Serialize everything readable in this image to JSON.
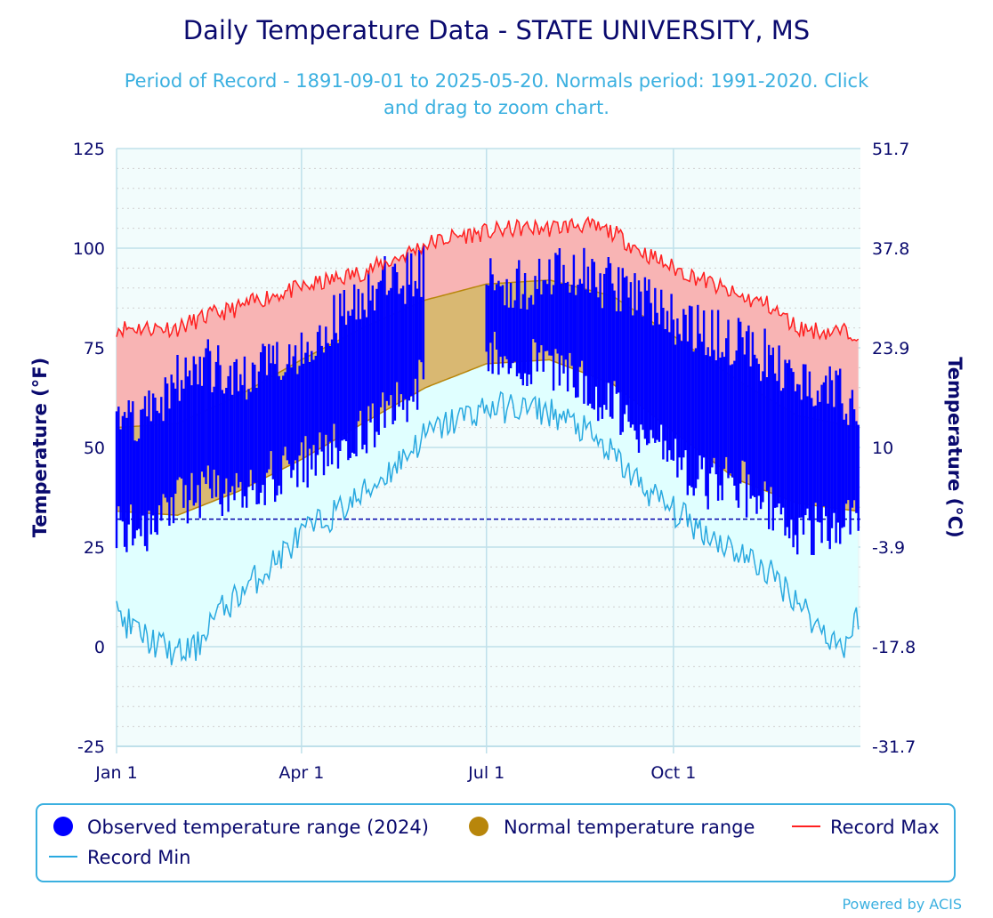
{
  "chart_data": {
    "type": "area",
    "title": "Daily Temperature Data - STATE UNIVERSITY, MS",
    "subtitle_line1": "Period of Record - 1891-09-01 to 2025-05-20. Normals period: 1991-2020. Click",
    "subtitle_line2": "and drag to zoom chart.",
    "ylabel": "Temperature (°F)",
    "ylabel_right": "Temperature (°C)",
    "ylim": [
      -25,
      125
    ],
    "xlim": [
      0,
      366
    ],
    "y_ticks": [
      -25,
      0,
      25,
      50,
      75,
      100,
      125
    ],
    "y_ticks_right": [
      "-31.7",
      "-17.8",
      "-3.9",
      "10",
      "23.9",
      "37.8",
      "51.7"
    ],
    "x_ticks": [
      {
        "day": 0,
        "label": "Jan 1"
      },
      {
        "day": 91,
        "label": "Apr 1"
      },
      {
        "day": 182,
        "label": "Jul 1"
      },
      {
        "day": 274,
        "label": "Oct 1"
      }
    ],
    "freezing_line_f": 32,
    "observed_last_day": 151,
    "grid": true,
    "legend_position": "bottom",
    "series": [
      {
        "name": "Observed temperature range (2024)",
        "kind": "range-bars",
        "color": "#0000ff",
        "gap_days": [
          152,
          181
        ],
        "anchors_day": [
          0,
          15,
          30,
          45,
          60,
          75,
          91,
          106,
          121,
          136,
          151,
          182,
          197,
          212,
          227,
          243,
          258,
          274,
          289,
          304,
          319,
          335,
          350,
          365
        ],
        "high_anchors": [
          54,
          56,
          64,
          68,
          62,
          70,
          72,
          78,
          86,
          89,
          92,
          90,
          88,
          90,
          91,
          88,
          85,
          80,
          76,
          74,
          70,
          64,
          62,
          58
        ],
        "low_anchors": [
          32,
          31,
          38,
          40,
          38,
          44,
          47,
          51,
          55,
          62,
          68,
          74,
          72,
          72,
          68,
          62,
          56,
          48,
          42,
          44,
          36,
          30,
          32,
          36
        ]
      },
      {
        "name": "Normal temperature range",
        "kind": "band",
        "color": "#b8860b",
        "anchors_day": [
          0,
          30,
          60,
          91,
          121,
          152,
          182,
          213,
          244,
          274,
          305,
          335,
          365
        ],
        "normal_high": [
          55,
          56,
          63,
          72,
          80,
          87,
          91,
          92,
          88,
          78,
          67,
          58,
          55
        ],
        "normal_low": [
          34,
          33,
          39,
          47,
          56,
          65,
          71,
          72,
          66,
          54,
          42,
          36,
          34
        ]
      },
      {
        "name": "Record Max",
        "kind": "line",
        "color": "#ff2020",
        "anchors_day": [
          0,
          15,
          30,
          45,
          60,
          75,
          91,
          106,
          121,
          136,
          152,
          167,
          182,
          197,
          213,
          228,
          244,
          259,
          274,
          289,
          305,
          320,
          335,
          350,
          365
        ],
        "values": [
          80,
          80,
          80,
          83,
          85,
          88,
          90,
          92,
          94,
          97,
          101,
          103,
          104,
          105,
          105,
          106,
          104,
          99,
          95,
          92,
          88,
          86,
          80,
          79,
          79
        ]
      },
      {
        "name": "Record Min",
        "kind": "line",
        "color": "#29a9e0",
        "anchors_day": [
          0,
          15,
          30,
          40,
          45,
          60,
          75,
          91,
          106,
          121,
          136,
          152,
          167,
          182,
          197,
          213,
          228,
          244,
          259,
          274,
          289,
          305,
          320,
          335,
          345,
          358,
          365
        ],
        "values": [
          8,
          2,
          -2,
          0,
          6,
          13,
          20,
          28,
          33,
          38,
          45,
          53,
          57,
          60,
          60,
          59,
          55,
          48,
          40,
          34,
          29,
          24,
          19,
          12,
          5,
          0,
          8
        ]
      }
    ]
  },
  "credit": "Powered by ACIS",
  "colors": {
    "record_band": "#f8b4b4",
    "below_normal_band": "#e0ffff",
    "plot_background": "#f2fcfc",
    "normal_band": "#d9b872",
    "normal_edge": "#b8860b",
    "freezing_line": "#0000aa",
    "grid_major": "#bfe0ea",
    "grid_minor": "#cfcfcf",
    "axis_text": "#0a0a6e",
    "legend_border": "#3bb0e0"
  }
}
